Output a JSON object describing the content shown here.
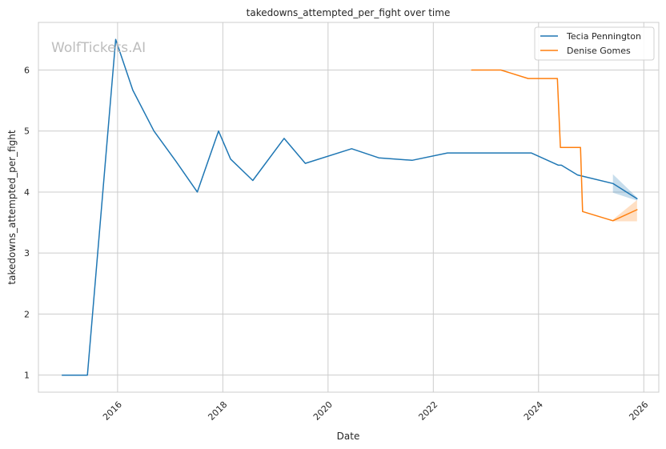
{
  "chart_data": {
    "type": "line",
    "title": "takedowns_attempted_per_fight over time",
    "xlabel": "Date",
    "ylabel": "takedowns_attempted_per_fight",
    "xlim": [
      "2014-07-01",
      "2026-04-15"
    ],
    "ylim": [
      0.72,
      6.78
    ],
    "x_ticks": [
      "2016",
      "2018",
      "2020",
      "2022",
      "2024",
      "2026"
    ],
    "y_ticks": [
      "1",
      "2",
      "3",
      "4",
      "5",
      "6"
    ],
    "grid": true,
    "legend_position": "top-right",
    "watermark": "WolfTickets.AI",
    "series": [
      {
        "name": "Tecia Pennington",
        "color": "#1f77b4",
        "points": [
          [
            "2014-12-13",
            1.0
          ],
          [
            "2015-06-06",
            1.0
          ],
          [
            "2015-12-19",
            6.5
          ],
          [
            "2016-04-16",
            5.67
          ],
          [
            "2016-09-10",
            5.0
          ],
          [
            "2017-02-11",
            4.5
          ],
          [
            "2017-07-08",
            4.0
          ],
          [
            "2017-12-02",
            5.0
          ],
          [
            "2018-02-24",
            4.54
          ],
          [
            "2018-07-28",
            4.19
          ],
          [
            "2019-03-02",
            4.88
          ],
          [
            "2019-07-27",
            4.47
          ],
          [
            "2020-06-13",
            4.71
          ],
          [
            "2020-12-19",
            4.56
          ],
          [
            "2021-08-07",
            4.52
          ],
          [
            "2022-04-09",
            4.64
          ],
          [
            "2023-11-11",
            4.64
          ],
          [
            "2024-05-18",
            4.44
          ],
          [
            "2024-06-08",
            4.44
          ],
          [
            "2024-09-28",
            4.28
          ],
          [
            "2025-06-01",
            4.14
          ],
          [
            "2025-11-15",
            3.89
          ]
        ],
        "band": [
          [
            "2025-06-01",
            3.99,
            4.29
          ],
          [
            "2025-11-15",
            3.86,
            3.91
          ]
        ]
      },
      {
        "name": "Denise Gomes",
        "color": "#ff7f0e",
        "points": [
          [
            "2022-09-24",
            6.0
          ],
          [
            "2023-04-15",
            6.0
          ],
          [
            "2023-10-21",
            5.86
          ],
          [
            "2024-05-11",
            5.86
          ],
          [
            "2024-06-01",
            4.73
          ],
          [
            "2024-10-19",
            4.73
          ],
          [
            "2024-11-02",
            3.68
          ],
          [
            "2025-06-01",
            3.53
          ],
          [
            "2025-11-15",
            3.71
          ]
        ],
        "band": [
          [
            "2025-06-01",
            3.52,
            3.55
          ],
          [
            "2025-11-15",
            3.52,
            3.87
          ]
        ]
      }
    ]
  }
}
